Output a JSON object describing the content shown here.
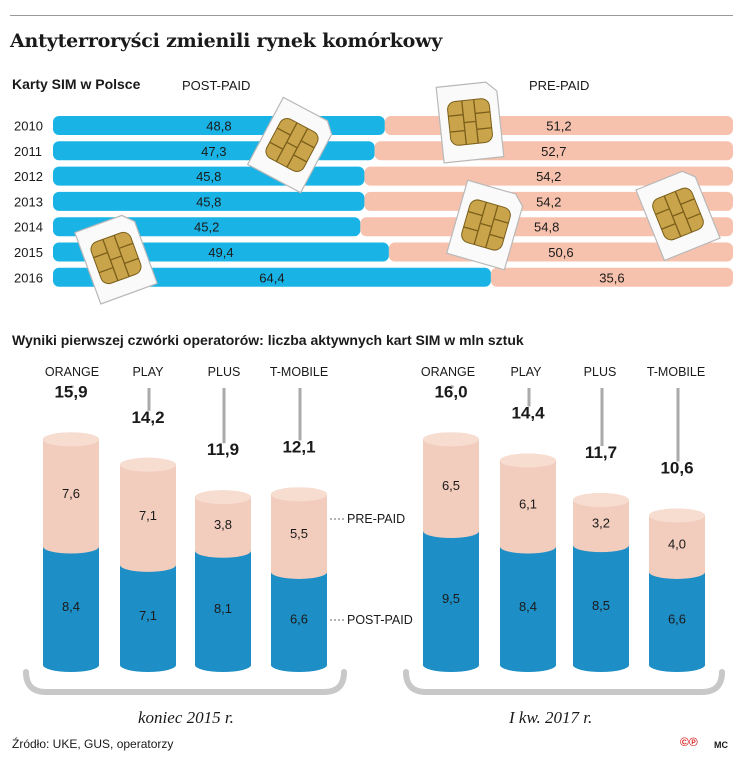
{
  "title": "Antyterroryści zmienili rynek komórkowy",
  "source": "Źródło: UKE, GUS, operatorzy",
  "credit": "MC",
  "logo_text": "©℗",
  "colors": {
    "postpaid": "#1ab3e6",
    "prepaid": "#f7c2ad",
    "cyl_post": "#1d8fc6",
    "cyl_pre": "#f2ccbd"
  },
  "chart_data": [
    {
      "type": "bar",
      "stacked": true,
      "orientation": "horizontal",
      "title": "Karty SIM w Polsce",
      "categories": [
        "2010",
        "2011",
        "2012",
        "2013",
        "2014",
        "2015",
        "2016"
      ],
      "series": [
        {
          "name": "POST-PAID",
          "values": [
            48.8,
            47.3,
            45.8,
            45.8,
            45.2,
            49.4,
            64.4
          ],
          "labels": [
            "48,8",
            "47,3",
            "45,8",
            "45,8",
            "45,2",
            "49,4",
            "64,4"
          ]
        },
        {
          "name": "PRE-PAID",
          "values": [
            51.2,
            52.7,
            54.2,
            54.2,
            54.8,
            50.6,
            35.6
          ],
          "labels": [
            "51,2",
            "52,7",
            "54,2",
            "54,2",
            "54,8",
            "50,6",
            "35,6"
          ]
        }
      ]
    },
    {
      "type": "bar",
      "stacked": true,
      "title": "Wyniki pierwszej czwórki operatorów: liczba aktywnych kart SIM w mln sztuk",
      "legend": [
        "PRE-PAID",
        "POST-PAID"
      ],
      "groups": [
        {
          "period": "koniec 2015 r.",
          "operators": [
            "ORANGE",
            "PLAY",
            "PLUS",
            "T-MOBILE"
          ],
          "postpaid": [
            8.4,
            7.1,
            8.1,
            6.6
          ],
          "prepaid": [
            7.6,
            7.1,
            3.8,
            5.5
          ],
          "totals": [
            15.9,
            14.2,
            11.9,
            12.1
          ],
          "postpaid_labels": [
            "8,4",
            "7,1",
            "8,1",
            "6,6"
          ],
          "prepaid_labels": [
            "7,6",
            "7,1",
            "3,8",
            "5,5"
          ],
          "total_labels": [
            "15,9",
            "14,2",
            "11,9",
            "12,1"
          ]
        },
        {
          "period": "I kw. 2017 r.",
          "operators": [
            "ORANGE",
            "PLAY",
            "PLUS",
            "T-MOBILE"
          ],
          "postpaid": [
            9.5,
            8.4,
            8.5,
            6.6
          ],
          "prepaid": [
            6.5,
            6.1,
            3.2,
            4.0
          ],
          "totals": [
            16.0,
            14.4,
            11.7,
            10.6
          ],
          "postpaid_labels": [
            "9,5",
            "8,4",
            "8,5",
            "6,6"
          ],
          "prepaid_labels": [
            "6,5",
            "6,1",
            "3,2",
            "4,0"
          ],
          "total_labels": [
            "16,0",
            "14,4",
            "11,7",
            "10,6"
          ]
        }
      ]
    }
  ]
}
